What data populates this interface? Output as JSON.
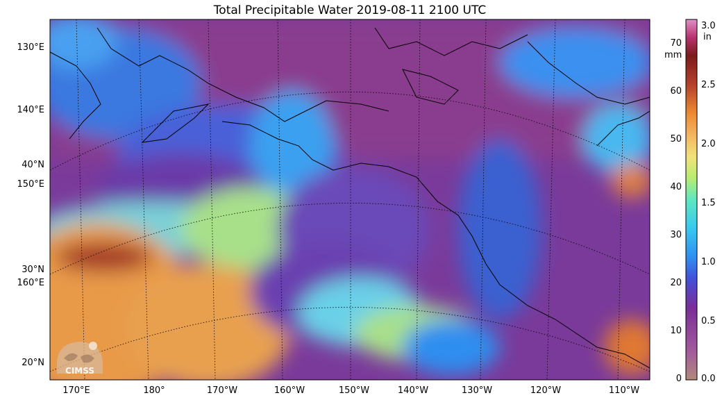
{
  "title": "Total Precipitable Water  2019-08-11 2100 UTC",
  "latitude_labels": [
    {
      "text": "130°E"
    },
    {
      "text": "140°E"
    },
    {
      "text": "40°N"
    },
    {
      "text": "150°E"
    },
    {
      "text": "30°N"
    },
    {
      "text": "160°E"
    },
    {
      "text": "20°N"
    }
  ],
  "longitude_labels": [
    "170°E",
    "180°",
    "170°W",
    "160°W",
    "150°W",
    "140°W",
    "130°W",
    "120°W",
    "110°W"
  ],
  "colorbar": {
    "mm_unit": "mm",
    "in_unit": "in",
    "mm_ticks": [
      "0",
      "10",
      "20",
      "30",
      "40",
      "50",
      "60",
      "70"
    ],
    "mm_range": [
      0,
      75
    ],
    "in_ticks": [
      "0.0",
      "0.5",
      "1.0",
      "1.5",
      "2.0",
      "2.5",
      "3.0"
    ],
    "colors": [
      "#b08a7a",
      "#a35a9c",
      "#7a2e98",
      "#4450d8",
      "#2e8ef0",
      "#38c8ef",
      "#5de8c0",
      "#b8ec72",
      "#f2e27a",
      "#f4b460",
      "#ec8a30",
      "#b4402c",
      "#7a1a1a",
      "#b8326e",
      "#e090c8"
    ]
  },
  "logo": {
    "text": "CIMSS"
  }
}
